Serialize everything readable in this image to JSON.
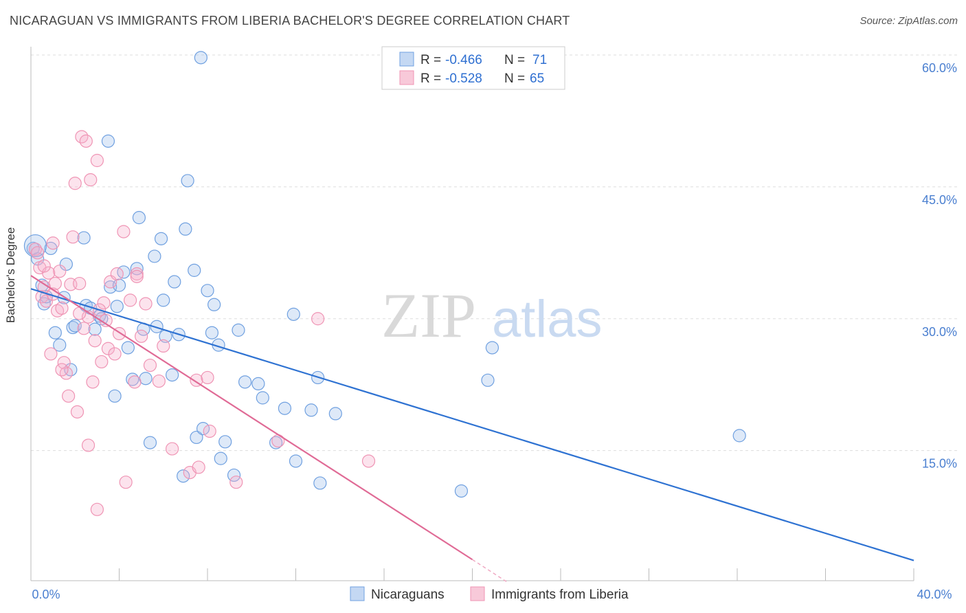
{
  "title": "NICARAGUAN VS IMMIGRANTS FROM LIBERIA BACHELOR'S DEGREE CORRELATION CHART",
  "source": "Source: ZipAtlas.com",
  "watermark": {
    "zip": "ZIP",
    "atlas": "atlas"
  },
  "legend": {
    "r_label": "R =",
    "n_label": "N =",
    "rows": [
      {
        "r": "-0.466",
        "n": "71"
      },
      {
        "r": "-0.528",
        "n": "65"
      }
    ]
  },
  "bottom_legend": [
    "Nicaraguans",
    "Immigrants from Liberia"
  ],
  "chart_data": {
    "type": "scatter",
    "xlabel": "",
    "ylabel": "Bachelor's Degree",
    "xlim": [
      0,
      40
    ],
    "ylim": [
      0,
      62
    ],
    "x_tick_labels": [
      {
        "value": 0,
        "label": "0.0%"
      },
      {
        "value": 40,
        "label": "40.0%"
      }
    ],
    "y_tick_labels": [
      {
        "value": 15,
        "label": "15.0%"
      },
      {
        "value": 30,
        "label": "30.0%"
      },
      {
        "value": 45,
        "label": "45.0%"
      },
      {
        "value": 60,
        "label": "60.0%"
      }
    ],
    "grid": true,
    "legend_position": "top-center",
    "colors": {
      "Nicaraguans": "#6fa0e0",
      "Immigrants from Liberia": "#ef94b4"
    },
    "series": [
      {
        "name": "Nicaraguans",
        "trend": {
          "x": [
            0,
            40
          ],
          "y": [
            33.4,
            2.5
          ]
        },
        "points": [
          [
            0.1,
            38.0
          ],
          [
            0.3,
            36.8
          ],
          [
            0.5,
            33.8
          ],
          [
            0.6,
            31.7
          ],
          [
            0.7,
            32.5
          ],
          [
            0.9,
            38.0
          ],
          [
            1.1,
            28.4
          ],
          [
            1.3,
            27.0
          ],
          [
            1.5,
            32.4
          ],
          [
            1.6,
            36.2
          ],
          [
            1.8,
            24.2
          ],
          [
            1.9,
            29.0
          ],
          [
            2.4,
            39.2
          ],
          [
            2.5,
            31.5
          ],
          [
            2.7,
            31.2
          ],
          [
            2.9,
            28.8
          ],
          [
            3.1,
            30.3
          ],
          [
            3.2,
            30.0
          ],
          [
            3.5,
            50.2
          ],
          [
            3.6,
            33.6
          ],
          [
            3.8,
            21.2
          ],
          [
            3.9,
            31.4
          ],
          [
            4.0,
            33.8
          ],
          [
            4.2,
            35.3
          ],
          [
            4.4,
            26.7
          ],
          [
            4.6,
            23.1
          ],
          [
            4.8,
            35.7
          ],
          [
            4.9,
            41.5
          ],
          [
            5.1,
            28.8
          ],
          [
            5.2,
            23.2
          ],
          [
            5.4,
            15.9
          ],
          [
            5.6,
            37.1
          ],
          [
            5.7,
            29.1
          ],
          [
            5.9,
            39.1
          ],
          [
            6.0,
            32.1
          ],
          [
            6.1,
            28.0
          ],
          [
            6.4,
            23.6
          ],
          [
            6.5,
            34.2
          ],
          [
            6.7,
            28.2
          ],
          [
            6.9,
            12.1
          ],
          [
            7.0,
            40.2
          ],
          [
            7.1,
            45.7
          ],
          [
            7.4,
            35.5
          ],
          [
            7.5,
            16.5
          ],
          [
            7.7,
            59.7
          ],
          [
            7.8,
            17.5
          ],
          [
            8.0,
            33.2
          ],
          [
            8.2,
            28.4
          ],
          [
            8.3,
            31.6
          ],
          [
            8.5,
            27.0
          ],
          [
            8.6,
            14.1
          ],
          [
            8.8,
            16.0
          ],
          [
            9.2,
            12.2
          ],
          [
            9.4,
            28.7
          ],
          [
            9.7,
            22.8
          ],
          [
            10.3,
            22.6
          ],
          [
            10.5,
            21.0
          ],
          [
            11.1,
            15.9
          ],
          [
            11.5,
            19.8
          ],
          [
            11.9,
            30.5
          ],
          [
            12.0,
            13.8
          ],
          [
            12.7,
            19.6
          ],
          [
            13.0,
            23.3
          ],
          [
            13.1,
            11.3
          ],
          [
            13.8,
            19.2
          ],
          [
            19.5,
            10.4
          ],
          [
            20.7,
            23.0
          ],
          [
            20.9,
            26.7
          ],
          [
            32.1,
            16.7
          ],
          [
            0.2,
            38.3
          ],
          [
            2.0,
            29.2
          ]
        ]
      },
      {
        "name": "Immigrants from Liberia",
        "trend": {
          "x": [
            0,
            20
          ],
          "y": [
            34.9,
            2.6
          ]
        },
        "trend_dashed": {
          "x": [
            20,
            21.6
          ],
          "y": [
            2.6,
            0
          ]
        },
        "points": [
          [
            0.2,
            37.9
          ],
          [
            0.4,
            35.8
          ],
          [
            0.5,
            32.5
          ],
          [
            0.6,
            33.6
          ],
          [
            0.7,
            32.0
          ],
          [
            0.8,
            35.2
          ],
          [
            0.9,
            26.0
          ],
          [
            1.0,
            38.6
          ],
          [
            1.1,
            34.0
          ],
          [
            1.2,
            30.9
          ],
          [
            1.3,
            35.4
          ],
          [
            1.4,
            31.2
          ],
          [
            1.5,
            25.0
          ],
          [
            1.6,
            23.8
          ],
          [
            1.7,
            21.2
          ],
          [
            1.8,
            33.9
          ],
          [
            1.9,
            39.3
          ],
          [
            2.0,
            45.4
          ],
          [
            2.1,
            19.4
          ],
          [
            2.2,
            34.0
          ],
          [
            2.3,
            50.7
          ],
          [
            2.4,
            28.9
          ],
          [
            2.5,
            50.2
          ],
          [
            2.6,
            30.2
          ],
          [
            2.6,
            15.6
          ],
          [
            2.7,
            45.8
          ],
          [
            2.8,
            22.8
          ],
          [
            2.9,
            27.5
          ],
          [
            3.0,
            48.0
          ],
          [
            3.2,
            25.1
          ],
          [
            3.3,
            31.8
          ],
          [
            3.4,
            29.8
          ],
          [
            3.5,
            26.6
          ],
          [
            3.6,
            34.2
          ],
          [
            3.8,
            26.0
          ],
          [
            3.9,
            35.1
          ],
          [
            4.0,
            28.3
          ],
          [
            4.2,
            39.9
          ],
          [
            4.3,
            11.4
          ],
          [
            4.5,
            32.1
          ],
          [
            4.7,
            22.8
          ],
          [
            4.8,
            35.1
          ],
          [
            5.0,
            28.0
          ],
          [
            5.2,
            31.7
          ],
          [
            5.4,
            24.7
          ],
          [
            6.0,
            26.9
          ],
          [
            6.4,
            15.2
          ],
          [
            7.2,
            12.5
          ],
          [
            7.6,
            13.1
          ],
          [
            7.5,
            23.0
          ],
          [
            8.0,
            23.3
          ],
          [
            8.1,
            17.2
          ],
          [
            9.3,
            11.4
          ],
          [
            11.2,
            16.1
          ],
          [
            13.0,
            30.0
          ],
          [
            15.3,
            13.8
          ],
          [
            3.0,
            8.3
          ],
          [
            0.3,
            37.5
          ],
          [
            1.0,
            32.8
          ],
          [
            2.2,
            30.6
          ],
          [
            3.1,
            31.0
          ],
          [
            4.8,
            34.8
          ],
          [
            1.4,
            24.2
          ],
          [
            0.6,
            36.0
          ],
          [
            5.8,
            22.9
          ]
        ]
      }
    ]
  }
}
